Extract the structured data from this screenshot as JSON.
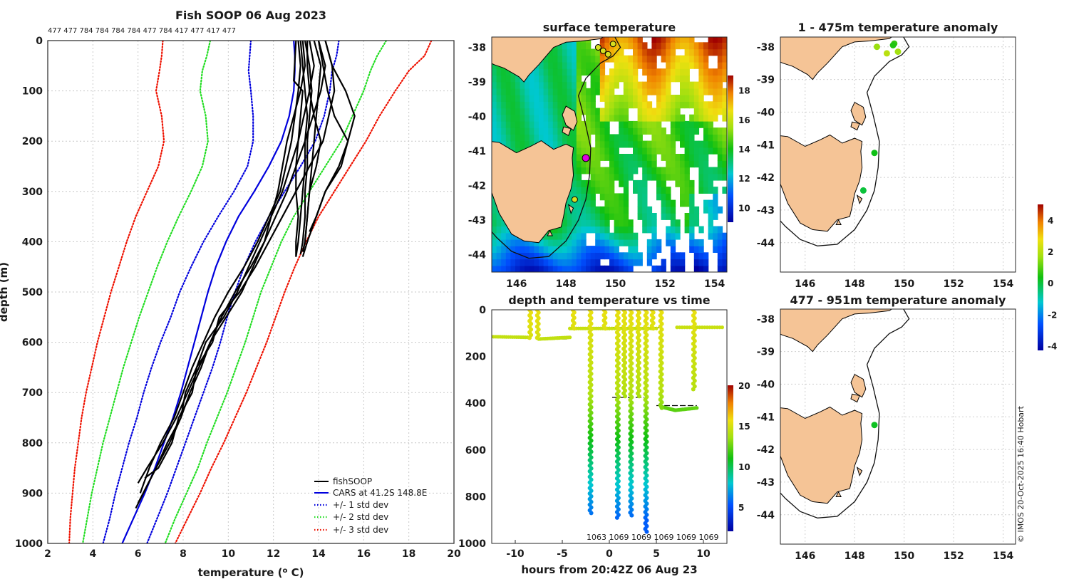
{
  "figure": {
    "title": "Fish SOOP 06 Aug 2023",
    "drop_labels": "477 477 784 784 784 784 477 784 417 477 417 477",
    "copyright": "© IMOS 20-Oct-2025 16:40 Hobart"
  },
  "colors": {
    "land": "#f5c496",
    "fishsoop": "#000000",
    "cars": "#0000dd",
    "std1": "#0000dd",
    "std2": "#22dd22",
    "std3": "#ee1100"
  },
  "chart_data": [
    {
      "id": "profile",
      "type": "line",
      "title": "Fish SOOP 06 Aug 2023",
      "xlabel": "temperature (",
      "xlabel_sup": "o",
      "xlabel_tail": " C)",
      "ylabel": "depth (m)",
      "xlim": [
        2,
        20
      ],
      "ylim": [
        1000,
        0
      ],
      "xticks": [
        2,
        4,
        6,
        8,
        10,
        12,
        14,
        16,
        18,
        20
      ],
      "yticks": [
        0,
        100,
        200,
        300,
        400,
        500,
        600,
        700,
        800,
        900,
        1000
      ],
      "legend": [
        "fishSOOP",
        "CARS at 41.2S 148.8E",
        "+/- 1 std dev",
        "+/- 2 std dev",
        "+/- 3 std dev"
      ],
      "legend_position": "bottom-right",
      "depths": [
        0,
        30,
        60,
        100,
        150,
        200,
        250,
        300,
        350,
        400,
        450,
        500,
        550,
        600,
        650,
        700,
        750,
        800,
        850,
        900,
        950,
        1000
      ],
      "cars_mean": [
        12.9,
        12.95,
        12.95,
        12.9,
        12.7,
        12.35,
        11.8,
        11.15,
        10.45,
        9.9,
        9.45,
        9.1,
        8.8,
        8.5,
        8.2,
        7.9,
        7.55,
        7.15,
        6.75,
        6.3,
        5.8,
        5.3
      ],
      "std1_minus": [
        11.0,
        10.95,
        10.9,
        11.0,
        11.1,
        11.1,
        10.85,
        10.25,
        9.55,
        8.9,
        8.35,
        7.85,
        7.45,
        7.0,
        6.6,
        6.25,
        5.95,
        5.6,
        5.3,
        5.0,
        4.75,
        4.45
      ],
      "std1_plus": [
        14.9,
        14.8,
        14.6,
        14.5,
        14.25,
        13.85,
        13.2,
        12.5,
        11.8,
        11.2,
        10.7,
        10.3,
        9.95,
        9.65,
        9.3,
        8.9,
        8.5,
        8.1,
        7.7,
        7.3,
        6.85,
        6.4
      ],
      "std2_minus": [
        9.2,
        9.05,
        8.85,
        8.75,
        9.0,
        9.1,
        8.85,
        8.35,
        7.8,
        7.3,
        6.85,
        6.45,
        6.05,
        5.7,
        5.35,
        5.05,
        4.75,
        4.45,
        4.2,
        3.95,
        3.75,
        3.55
      ],
      "std2_plus": [
        17.0,
        16.6,
        16.3,
        16.0,
        15.5,
        15.0,
        14.3,
        13.6,
        12.9,
        12.35,
        11.9,
        11.45,
        11.1,
        10.75,
        10.35,
        9.95,
        9.5,
        9.05,
        8.65,
        8.15,
        7.65,
        7.2
      ],
      "std3_minus": [
        7.1,
        7.05,
        6.95,
        6.8,
        7.05,
        7.15,
        6.9,
        6.4,
        5.9,
        5.5,
        5.15,
        4.8,
        4.5,
        4.2,
        3.95,
        3.7,
        3.5,
        3.35,
        3.2,
        3.1,
        3.0,
        2.95
      ],
      "std3_plus": [
        19.0,
        18.7,
        18.0,
        17.4,
        16.7,
        16.1,
        15.4,
        14.7,
        14.0,
        13.45,
        12.95,
        12.5,
        12.1,
        11.7,
        11.25,
        10.8,
        10.3,
        9.8,
        9.25,
        8.75,
        8.2,
        7.65
      ],
      "fishsoop_profiles": [
        {
          "depths": [
            0,
            50,
            100,
            150,
            200,
            250,
            300,
            350,
            400,
            430
          ],
          "temps": [
            13.2,
            13.3,
            13.4,
            13.5,
            13.4,
            13.4,
            13.3,
            13.2,
            13.1,
            13.0
          ]
        },
        {
          "depths": [
            0,
            50,
            100,
            150,
            200,
            250,
            300,
            350,
            400,
            425
          ],
          "temps": [
            13.4,
            13.6,
            13.7,
            13.6,
            13.5,
            13.5,
            13.4,
            13.4,
            13.3,
            13.2
          ]
        },
        {
          "depths": [
            0,
            50,
            100,
            150,
            200,
            250,
            300,
            350,
            380
          ],
          "temps": [
            14.0,
            14.2,
            14.4,
            14.7,
            15.3,
            15.0,
            14.3,
            13.9,
            13.6
          ]
        },
        {
          "depths": [
            0,
            50,
            100,
            150,
            200,
            250,
            300,
            350,
            400,
            430
          ],
          "temps": [
            14.3,
            14.6,
            15.2,
            15.6,
            15.3,
            14.9,
            14.3,
            13.9,
            13.5,
            13.3
          ]
        },
        {
          "depths": [
            0,
            50,
            100,
            150,
            200,
            250,
            300,
            350,
            400,
            420
          ],
          "temps": [
            13.8,
            14.1,
            14.0,
            13.9,
            13.8,
            13.7,
            13.6,
            13.5,
            13.4,
            13.3
          ]
        },
        {
          "depths": [
            0,
            50,
            100,
            150,
            200,
            250,
            300,
            350,
            400,
            420
          ],
          "temps": [
            13.5,
            13.5,
            13.6,
            13.8,
            14.1,
            13.9,
            13.6,
            13.5,
            13.4,
            13.3
          ]
        },
        {
          "depths": [
            0,
            80,
            100,
            150,
            200,
            250,
            300,
            350,
            400,
            430
          ],
          "temps": [
            13.0,
            12.9,
            13.3,
            13.2,
            13.1,
            13.0,
            13.0,
            13.1,
            13.0,
            13.0
          ]
        },
        {
          "depths": [
            0,
            50,
            100,
            200,
            300,
            400,
            450,
            500,
            550,
            600,
            650,
            700,
            750,
            800,
            850,
            880
          ],
          "temps": [
            13.3,
            13.4,
            13.2,
            12.6,
            12.2,
            11.6,
            11.0,
            10.3,
            9.7,
            9.2,
            8.7,
            8.2,
            7.7,
            7.1,
            6.4,
            6.0
          ]
        },
        {
          "depths": [
            0,
            50,
            100,
            200,
            300,
            400,
            450,
            500,
            550,
            600,
            650,
            700,
            750,
            800,
            850,
            900
          ],
          "temps": [
            13.1,
            13.2,
            13.1,
            12.8,
            12.3,
            11.3,
            10.7,
            10.0,
            9.4,
            8.9,
            8.4,
            8.0,
            7.6,
            7.0,
            6.5,
            6.1
          ]
        },
        {
          "depths": [
            0,
            50,
            100,
            200,
            300,
            400,
            450,
            500,
            550,
            600,
            650,
            700,
            750,
            800,
            850,
            920
          ],
          "temps": [
            13.6,
            13.8,
            13.6,
            13.1,
            12.4,
            11.4,
            10.9,
            10.4,
            9.8,
            9.0,
            8.6,
            8.1,
            7.9,
            7.3,
            6.8,
            6.0
          ]
        },
        {
          "depths": [
            0,
            50,
            100,
            200,
            300,
            400,
            450,
            500,
            550,
            600,
            650,
            700,
            750,
            800,
            850,
            930
          ],
          "temps": [
            14.0,
            14.3,
            14.1,
            13.4,
            12.6,
            11.6,
            11.1,
            10.6,
            9.9,
            9.2,
            8.8,
            8.3,
            7.9,
            7.4,
            6.8,
            5.9
          ]
        },
        {
          "depths": [
            0,
            50,
            100,
            200,
            300,
            400,
            450,
            500,
            550,
            600,
            650,
            700,
            750,
            800,
            850,
            870
          ],
          "temps": [
            14.3,
            14.6,
            14.7,
            14.2,
            13.0,
            11.8,
            11.2,
            10.5,
            9.6,
            9.3,
            8.6,
            8.4,
            7.8,
            7.5,
            6.9,
            6.3
          ]
        }
      ]
    },
    {
      "id": "sst",
      "type": "heatmap",
      "title": "surface temperature",
      "xlim": [
        145,
        154.5
      ],
      "ylim": [
        -44.5,
        -37.7
      ],
      "xticks": [
        146,
        148,
        150,
        152,
        154
      ],
      "yticks": [
        -38,
        -39,
        -40,
        -41,
        -42,
        -43,
        -44
      ],
      "colorbar_ticks": [
        10,
        12,
        14,
        16,
        18
      ],
      "colorbar_range": [
        9,
        19
      ],
      "drop_points": [
        [
          148.8,
          -41.2
        ],
        [
          148.35,
          -42.4
        ],
        [
          149.5,
          -38.1
        ],
        [
          149.7,
          -38.2
        ],
        [
          149.9,
          -37.9
        ],
        [
          149.3,
          -38.0
        ]
      ]
    },
    {
      "id": "depth_time",
      "type": "scatter",
      "title": "depth and temperature vs time",
      "xlabel": "hours from 20:42Z 06 Aug 23",
      "xlim": [
        -12.5,
        12.5
      ],
      "ylim": [
        1000,
        0
      ],
      "xticks": [
        -10,
        -5,
        0,
        5,
        10
      ],
      "yticks": [
        0,
        200,
        400,
        600,
        800,
        1000
      ],
      "colorbar_ticks": [
        5,
        10,
        15,
        20
      ],
      "colorbar_range": [
        2,
        20
      ],
      "drop_id_labels": "1063 1069 1069 1069 1069 1069",
      "bottom_line_segments": [
        {
          "x": [
            -12.5,
            -8.5
          ],
          "depth": 120
        },
        {
          "x": [
            -7.5,
            -4.5
          ],
          "depth": 125
        },
        {
          "x": [
            -4,
            5.5
          ],
          "depth": 75
        },
        {
          "x": [
            0.3,
            3.7
          ],
          "depth": 375
        },
        {
          "x": [
            5,
            9.3
          ],
          "depth": 410
        },
        {
          "x": [
            7.3,
            12
          ],
          "depth": 75
        }
      ],
      "drops": [
        {
          "t": -8.4,
          "max_depth": 120
        },
        {
          "t": -7.6,
          "max_depth": 120
        },
        {
          "t": -3.8,
          "max_depth": 80
        },
        {
          "t": -2.0,
          "max_depth": 870
        },
        {
          "t": -0.5,
          "max_depth": 80
        },
        {
          "t": 0.9,
          "max_depth": 890
        },
        {
          "t": 1.6,
          "max_depth": 370
        },
        {
          "t": 2.3,
          "max_depth": 880
        },
        {
          "t": 3.1,
          "max_depth": 370
        },
        {
          "t": 3.9,
          "max_depth": 950
        },
        {
          "t": 4.6,
          "max_depth": 80
        },
        {
          "t": 5.5,
          "max_depth": 420
        },
        {
          "t": 9.0,
          "max_depth": 340
        }
      ]
    },
    {
      "id": "anom_shallow",
      "type": "scatter",
      "title": "1 - 475m temperature anomaly",
      "xlim": [
        145,
        154.5
      ],
      "ylim": [
        -44.9,
        -37.7
      ],
      "xticks": [
        146,
        148,
        150,
        152,
        154
      ],
      "yticks": [
        -38,
        -39,
        -40,
        -41,
        -42,
        -43,
        -44
      ],
      "points": [
        {
          "lon": 149.6,
          "lat": -37.9,
          "anom": 0.7
        },
        {
          "lon": 149.55,
          "lat": -37.95,
          "anom": 0.5
        },
        {
          "lon": 148.9,
          "lat": -38.0,
          "anom": 1.6
        },
        {
          "lon": 149.3,
          "lat": -38.2,
          "anom": 2.0
        },
        {
          "lon": 149.75,
          "lat": -38.15,
          "anom": 1.7
        },
        {
          "lon": 148.8,
          "lat": -41.25,
          "anom": 0.3
        },
        {
          "lon": 148.35,
          "lat": -42.4,
          "anom": 0.0
        }
      ]
    },
    {
      "id": "anom_deep",
      "type": "scatter",
      "title": "477 - 951m temperature anomaly",
      "xlim": [
        145,
        154.5
      ],
      "ylim": [
        -44.9,
        -37.7
      ],
      "xticks": [
        146,
        148,
        150,
        152,
        154
      ],
      "yticks": [
        -38,
        -39,
        -40,
        -41,
        -42,
        -43,
        -44
      ],
      "colorbar_ticks": [
        -4,
        -2,
        0,
        2,
        4
      ],
      "colorbar_range": [
        -4.3,
        5.0
      ],
      "points": [
        {
          "lon": 148.8,
          "lat": -41.25,
          "anom": 0.2
        }
      ]
    }
  ]
}
